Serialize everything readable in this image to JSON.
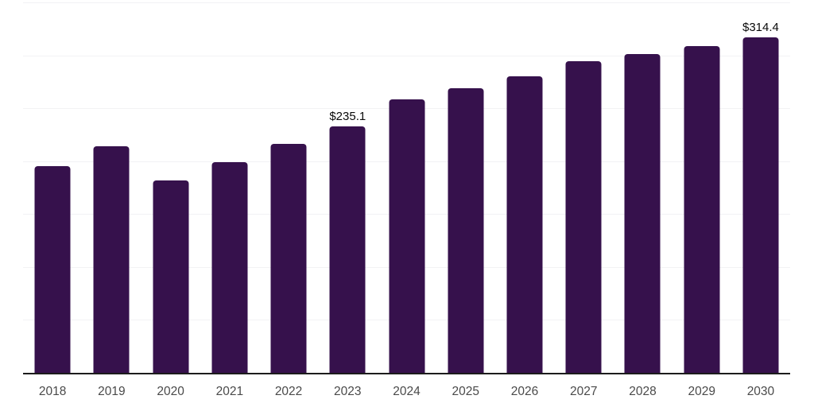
{
  "chart_data": {
    "type": "bar",
    "categories": [
      "2018",
      "2019",
      "2020",
      "2021",
      "2022",
      "2023",
      "2024",
      "2025",
      "2026",
      "2027",
      "2028",
      "2029",
      "2030"
    ],
    "values": [
      199.0,
      217.4,
      186.6,
      202.5,
      219.1,
      235.1,
      259.3,
      269.2,
      279.9,
      293.4,
      299.4,
      306.9,
      314.4
    ],
    "data_labels": [
      "",
      "",
      "",
      "",
      "",
      "$235.1",
      "",
      "",
      "",
      "",
      "",
      "",
      "$314.4"
    ],
    "unit_prefix": "$",
    "ylim": [
      14,
      346
    ],
    "grid": "horizontal",
    "gridline_count": 8,
    "legend_position": "none",
    "colors": {
      "bar": "#36114c",
      "gridline": "#f2f2f4",
      "axis_line": "#1c1c1c",
      "x_tick_label": "#4a4a4a",
      "data_label": "#0a0a0a",
      "background": "#ffffff"
    }
  }
}
